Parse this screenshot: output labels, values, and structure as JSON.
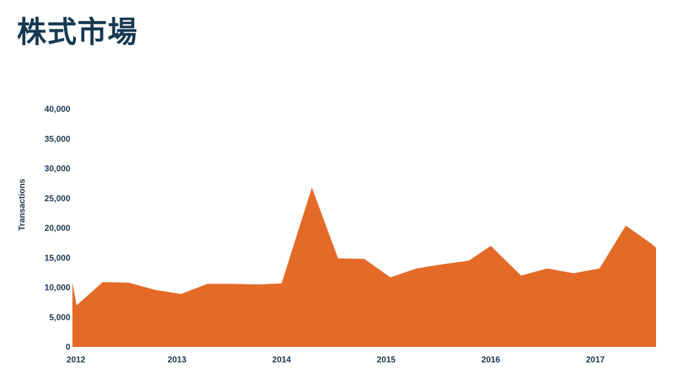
{
  "title": "株式市場",
  "chart_data": {
    "type": "area",
    "title": "株式市場",
    "xlabel": "",
    "ylabel": "Transactions",
    "ylim": [
      0,
      40000
    ],
    "xlim": [
      2012.0,
      2017.58
    ],
    "grid": false,
    "legend": "none",
    "yticks": [
      0,
      5000,
      10000,
      15000,
      20000,
      25000,
      30000,
      35000,
      40000
    ],
    "ytick_labels": [
      "0",
      "5,000",
      "10,000",
      "15,000",
      "20,000",
      "25,000",
      "30,000",
      "35,000",
      "40,000"
    ],
    "xticks": [
      2012,
      2013,
      2014,
      2015,
      2016,
      2017
    ],
    "xtick_labels": [
      "2012",
      "2013",
      "2014",
      "2015",
      "2016",
      "2017"
    ],
    "series": [
      {
        "color": "#e46a28",
        "x": [
          2012.0,
          2012.04,
          2012.29,
          2012.54,
          2012.79,
          2013.04,
          2013.29,
          2013.54,
          2013.79,
          2014.0,
          2014.29,
          2014.54,
          2014.79,
          2015.04,
          2015.29,
          2015.54,
          2015.79,
          2016.0,
          2016.29,
          2016.54,
          2016.79,
          2017.04,
          2017.29,
          2017.54,
          2017.58
        ],
        "values": [
          10800,
          7000,
          10900,
          10800,
          9600,
          8900,
          10600,
          10600,
          10500,
          10700,
          26800,
          14900,
          14800,
          11700,
          13200,
          13900,
          14500,
          17000,
          12000,
          13200,
          12400,
          13200,
          20400,
          17300,
          16700
        ]
      }
    ]
  }
}
